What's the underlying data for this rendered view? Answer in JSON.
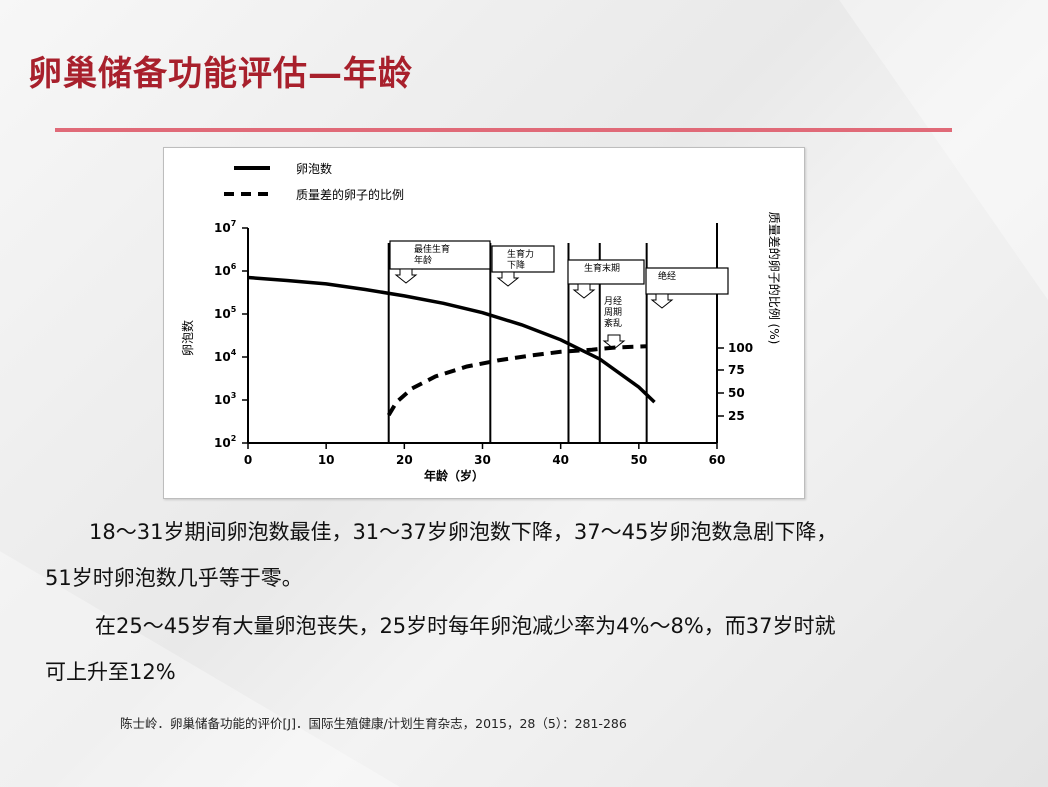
{
  "slide": {
    "title": "卵巢储备功能评估—年龄",
    "paragraph1_line1": "18～31岁期间卵泡数最佳，31～37岁卵泡数下降，37～45岁卵泡数急剧下降，",
    "paragraph1_line2": "51岁时卵泡数几乎等于零。",
    "paragraph2_line1": "在25～45岁有大量卵泡丧失，25岁时每年卵泡减少率为4%～8%，而37岁时就",
    "paragraph2_line2": "可上升至12%",
    "citation": "陈士岭．卵巢储备功能的评价[J]．国际生殖健康/计划生育杂志，2015，28（5）：281-286"
  },
  "colors": {
    "title": "#a8202c",
    "rule": "#e06a78",
    "text": "#111111"
  },
  "chart_data": {
    "type": "line",
    "legend": [
      "卵泡数",
      "质量差的卵子的比例"
    ],
    "xlabel": "年龄（岁）",
    "ylabel_left": "卵泡数",
    "ylabel_right": "质量差的卵子的比例 (%)",
    "xlim": [
      0,
      60
    ],
    "x_ticks": [
      "0",
      "10",
      "20",
      "30",
      "40",
      "50",
      "60"
    ],
    "y_left_scale": "log",
    "y_left_ticks": [
      {
        "base": "10",
        "exp": "2"
      },
      {
        "base": "10",
        "exp": "3"
      },
      {
        "base": "10",
        "exp": "4"
      },
      {
        "base": "10",
        "exp": "5"
      },
      {
        "base": "10",
        "exp": "6"
      },
      {
        "base": "10",
        "exp": "7"
      }
    ],
    "y_right_ticks": [
      "25",
      "50",
      "75",
      "100"
    ],
    "series": [
      {
        "name": "卵泡数",
        "style": "solid",
        "x": [
          0,
          5,
          10,
          15,
          20,
          25,
          30,
          35,
          40,
          45,
          50,
          52
        ],
        "y_log10": [
          5.85,
          5.78,
          5.7,
          5.57,
          5.42,
          5.25,
          5.03,
          4.75,
          4.4,
          3.95,
          3.3,
          2.95
        ]
      },
      {
        "name": "质量差的卵子的比例",
        "style": "dashed",
        "x": [
          18,
          19,
          21,
          24,
          28,
          32,
          36,
          40,
          44,
          47,
          51
        ],
        "y_log10": [
          2.65,
          2.95,
          3.27,
          3.55,
          3.78,
          3.92,
          4.03,
          4.12,
          4.17,
          4.22,
          4.25
        ]
      }
    ],
    "stages": [
      {
        "label": "最佳生育年龄",
        "x0": 18,
        "x1": 31
      },
      {
        "label": "生育力下降",
        "x0": 31,
        "x1": 41
      },
      {
        "label": "生育末期",
        "x0": 41,
        "x1": 51
      },
      {
        "label": "月经周期紊乱",
        "x0": 45,
        "x1": 51
      },
      {
        "label": "绝经",
        "x0": 51,
        "x1": 60
      }
    ]
  }
}
